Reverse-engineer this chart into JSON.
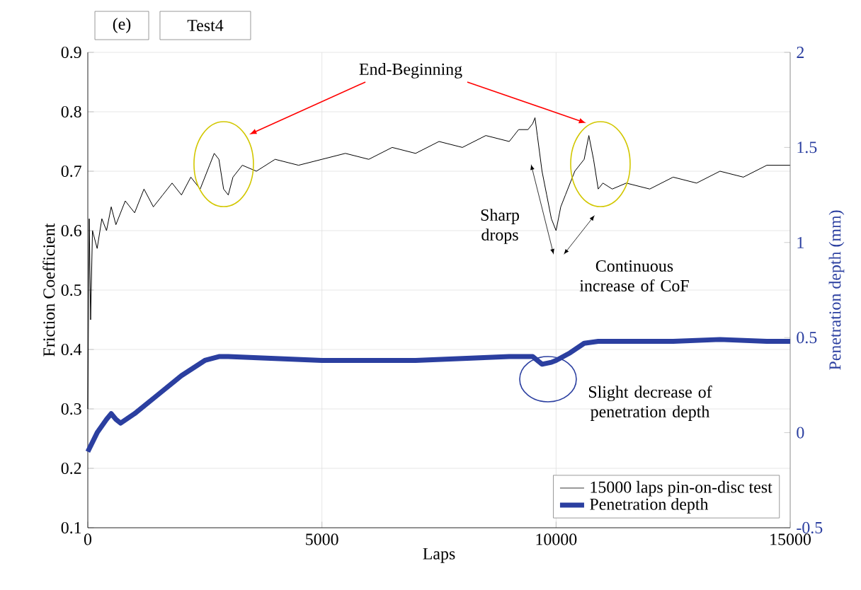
{
  "chart_data": {
    "type": "line",
    "xlabel": "Laps",
    "ylabel": "Friction Coefficient",
    "y2label": "Penetration depth (mm)",
    "xlim": [
      0,
      15000
    ],
    "xticks": [
      0,
      5000,
      10000,
      15000
    ],
    "ylim": [
      0.1,
      0.9
    ],
    "yticks": [
      0.1,
      0.2,
      0.3,
      0.4,
      0.5,
      0.6,
      0.7,
      0.8,
      0.9
    ],
    "y2lim": [
      -0.5,
      2
    ],
    "y2ticks": [
      -0.5,
      0,
      0.5,
      1,
      1.5,
      2
    ],
    "grid": true,
    "legend": "bottom right",
    "annotations": [
      "(e)",
      "Test4",
      "End-Beginning",
      "Sharp drops",
      "Continuous increase of CoF",
      "Slight decrease of penetration depth"
    ],
    "series": [
      {
        "name": "15000 laps pin-on-disc test",
        "color": "#000000",
        "x": [
          0,
          30,
          60,
          100,
          200,
          300,
          400,
          500,
          600,
          800,
          1000,
          1200,
          1400,
          1600,
          1800,
          2000,
          2200,
          2400,
          2600,
          2700,
          2800,
          2900,
          3000,
          3100,
          3300,
          3600,
          4000,
          4500,
          5000,
          5500,
          6000,
          6500,
          7000,
          7500,
          8000,
          8500,
          9000,
          9200,
          9400,
          9500,
          9550,
          9600,
          9700,
          9800,
          9900,
          10000,
          10100,
          10200,
          10400,
          10600,
          10700,
          10800,
          10900,
          11000,
          11200,
          11500,
          12000,
          12500,
          13000,
          13500,
          14000,
          14500,
          15000
        ],
        "values": [
          0.3,
          0.62,
          0.45,
          0.6,
          0.57,
          0.62,
          0.6,
          0.64,
          0.61,
          0.65,
          0.63,
          0.67,
          0.64,
          0.66,
          0.68,
          0.66,
          0.69,
          0.67,
          0.71,
          0.73,
          0.72,
          0.67,
          0.66,
          0.69,
          0.71,
          0.7,
          0.72,
          0.71,
          0.72,
          0.73,
          0.72,
          0.74,
          0.73,
          0.75,
          0.74,
          0.76,
          0.75,
          0.77,
          0.77,
          0.78,
          0.79,
          0.76,
          0.7,
          0.66,
          0.62,
          0.6,
          0.64,
          0.66,
          0.7,
          0.72,
          0.76,
          0.72,
          0.67,
          0.68,
          0.67,
          0.68,
          0.67,
          0.69,
          0.68,
          0.7,
          0.69,
          0.71,
          0.71
        ]
      },
      {
        "name": "Penetration depth",
        "color": "#2b3fa0",
        "axis": "y2",
        "x": [
          0,
          200,
          400,
          500,
          600,
          700,
          1000,
          1500,
          2000,
          2500,
          2800,
          3000,
          4000,
          5000,
          6000,
          7000,
          8000,
          9000,
          9500,
          9700,
          9900,
          10000,
          10300,
          10600,
          10900,
          11500,
          12500,
          13500,
          14500,
          15000
        ],
        "values": [
          -0.1,
          0.0,
          0.07,
          0.1,
          0.07,
          0.05,
          0.1,
          0.2,
          0.3,
          0.38,
          0.4,
          0.4,
          0.39,
          0.38,
          0.38,
          0.38,
          0.39,
          0.4,
          0.4,
          0.36,
          0.37,
          0.38,
          0.42,
          0.47,
          0.48,
          0.48,
          0.48,
          0.49,
          0.48,
          0.48
        ]
      }
    ]
  }
}
